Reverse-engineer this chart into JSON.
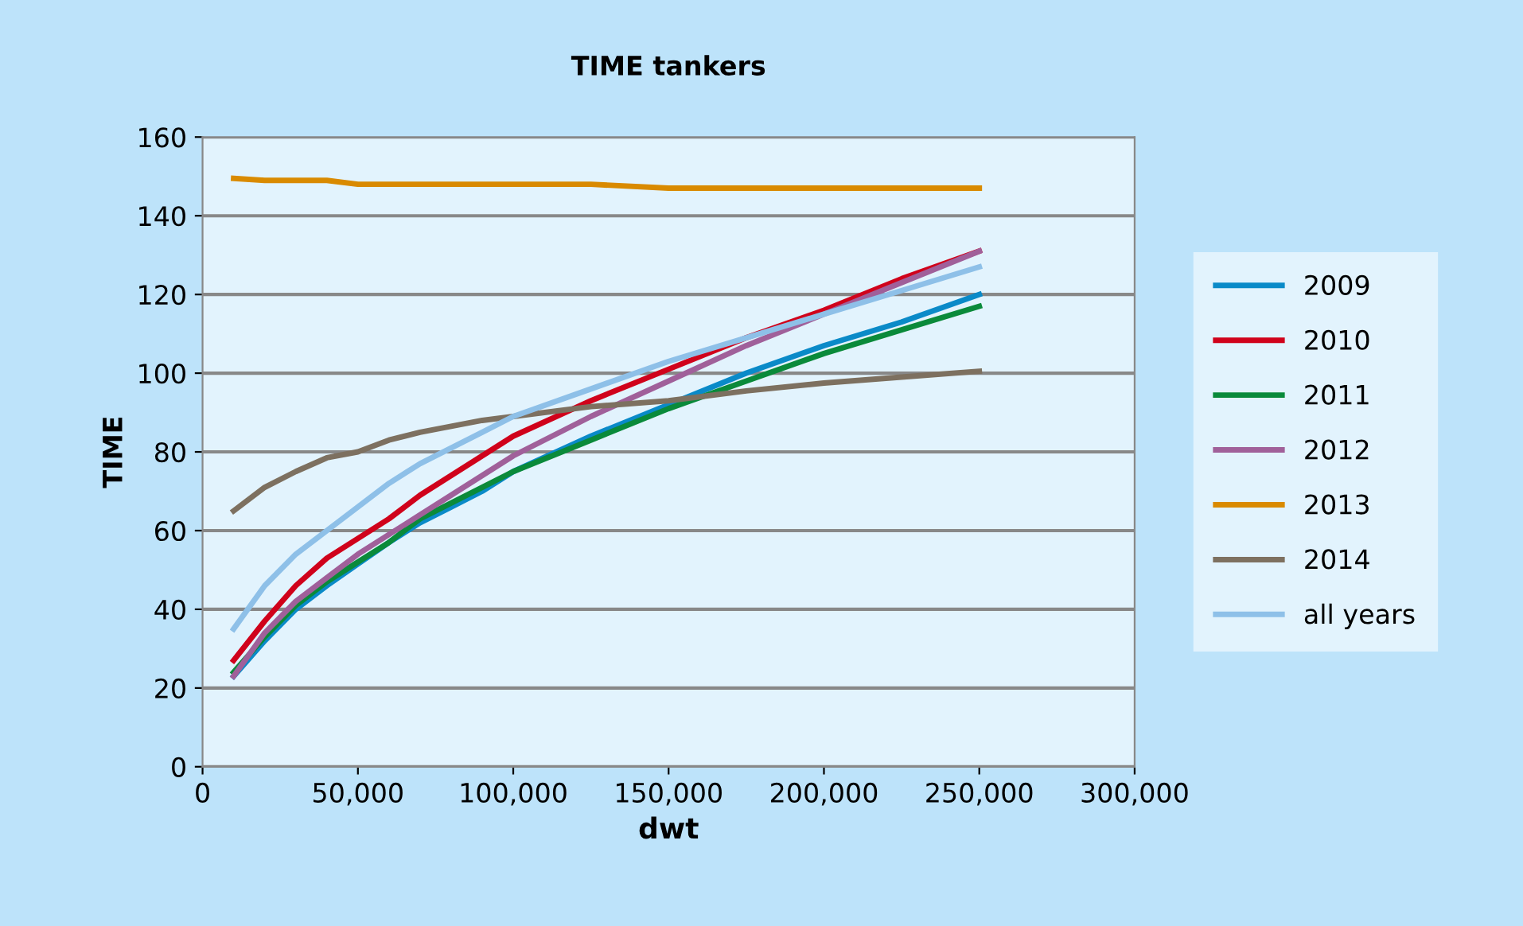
{
  "chart_data": {
    "type": "line",
    "title": "TIME tankers",
    "xlabel": "dwt",
    "ylabel": "TIME",
    "x": [
      10000,
      20000,
      30000,
      40000,
      50000,
      60000,
      70000,
      80000,
      90000,
      100000,
      125000,
      150000,
      175000,
      200000,
      225000,
      250000
    ],
    "series": [
      {
        "name": "2009",
        "color": "#0a8ac8",
        "values": [
          23,
          32,
          40,
          46,
          51.5,
          57,
          62,
          66,
          70,
          75,
          84,
          92,
          100,
          107,
          113,
          120
        ]
      },
      {
        "name": "2010",
        "color": "#d0021b",
        "values": [
          27,
          37,
          46,
          53,
          58,
          63,
          69,
          74,
          79,
          84,
          93,
          101,
          109,
          116,
          124,
          131
        ]
      },
      {
        "name": "2011",
        "color": "#0a8a3a",
        "values": [
          24,
          33,
          41,
          47,
          52,
          57,
          63,
          67,
          71,
          75,
          83,
          91,
          98,
          105,
          111,
          117
        ]
      },
      {
        "name": "2012",
        "color": "#a0609a",
        "values": [
          23,
          34,
          42,
          48,
          54,
          59,
          64,
          69,
          74,
          79,
          89,
          98,
          107,
          115,
          123,
          131
        ]
      },
      {
        "name": "2013",
        "color": "#d98a00",
        "values": [
          149.5,
          149,
          149,
          149,
          148,
          148,
          148,
          148,
          148,
          148,
          148,
          147,
          147,
          147,
          147,
          147
        ]
      },
      {
        "name": "2014",
        "color": "#7d7060",
        "values": [
          65,
          71,
          75,
          78.5,
          80,
          83,
          85,
          86.5,
          88,
          89,
          91.5,
          93,
          95.5,
          97.5,
          99,
          100.5
        ]
      },
      {
        "name": "all years",
        "color": "#8ec0e8",
        "values": [
          35,
          46,
          54,
          60,
          66,
          72,
          77,
          81,
          85,
          89,
          96,
          103,
          109,
          115,
          121,
          127
        ]
      }
    ],
    "xlim": [
      0,
      300000
    ],
    "xticks": [
      {
        "value": 0,
        "label": "0"
      },
      {
        "value": 50000,
        "label": "50,000"
      },
      {
        "value": 100000,
        "label": "100,000"
      },
      {
        "value": 150000,
        "label": "150,000"
      },
      {
        "value": 200000,
        "label": "200,000"
      },
      {
        "value": 250000,
        "label": "250,000"
      },
      {
        "value": 300000,
        "label": "300,000"
      }
    ],
    "ylim": [
      0,
      160
    ],
    "yticks": [
      0,
      20,
      40,
      60,
      80,
      100,
      120,
      140,
      160
    ],
    "grid": "y",
    "legend": "right",
    "line_style": "solid",
    "marker": "none"
  }
}
